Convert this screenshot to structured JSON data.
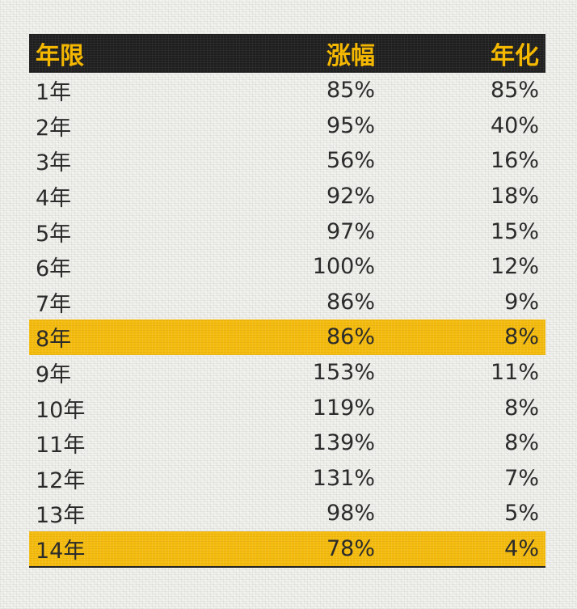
{
  "table": {
    "headers": [
      "年限",
      "涨幅",
      "年化"
    ],
    "rows": [
      [
        "1年",
        "85%",
        "85%"
      ],
      [
        "2年",
        "95%",
        "40%"
      ],
      [
        "3年",
        "56%",
        "16%"
      ],
      [
        "4年",
        "92%",
        "18%"
      ],
      [
        "5年",
        "97%",
        "15%"
      ],
      [
        "6年",
        "100%",
        "12%"
      ],
      [
        "7年",
        "86%",
        "9%"
      ],
      [
        "8年",
        "86%",
        "8%"
      ],
      [
        "9年",
        "153%",
        "11%"
      ],
      [
        "10年",
        "119%",
        "8%"
      ],
      [
        "11年",
        "139%",
        "8%"
      ],
      [
        "12年",
        "131%",
        "7%"
      ],
      [
        "13年",
        "98%",
        "5%"
      ],
      [
        "14年",
        "78%",
        "4%"
      ]
    ],
    "highlighted_rows": [
      7,
      13
    ]
  },
  "colors": {
    "header_bg": "#1e1e1e",
    "header_text": "#f5b800",
    "highlight_bg": "#f6bd0f",
    "page_bg": "#efefeb"
  }
}
